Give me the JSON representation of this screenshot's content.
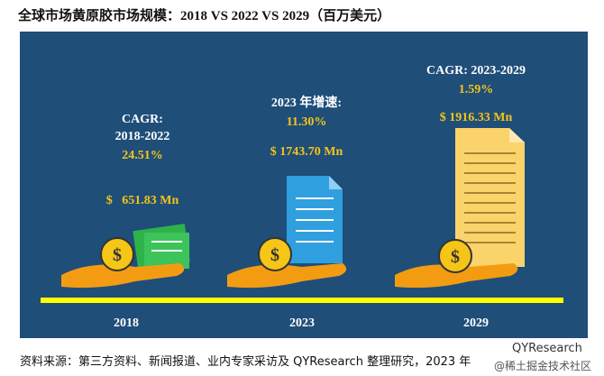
{
  "header": {
    "title": "全球市场黄原胶市场规模：2018 VS 2022 VS 2029（百万美元）"
  },
  "panels": [
    {
      "lines": [
        "CAGR:",
        "2018-2022"
      ],
      "rate": "24.51%",
      "value": "$   651.83 Mn",
      "year": "2018"
    },
    {
      "lines": [
        "2023 年增速:"
      ],
      "rate": "11.30%",
      "value": "$ 1743.70 Mn",
      "year": "2023"
    },
    {
      "lines": [
        "CAGR: 2023-2029"
      ],
      "rate": "1.59%",
      "value": "$ 1916.33 Mn",
      "year": "2029"
    }
  ],
  "footer": {
    "source": "资料来源：第三方资料、新闻报道、业内专家采访及 QYResearch 整理研究，2023 年",
    "brand": "QYResearch",
    "watermark": "@稀土掘金技术社区"
  }
}
